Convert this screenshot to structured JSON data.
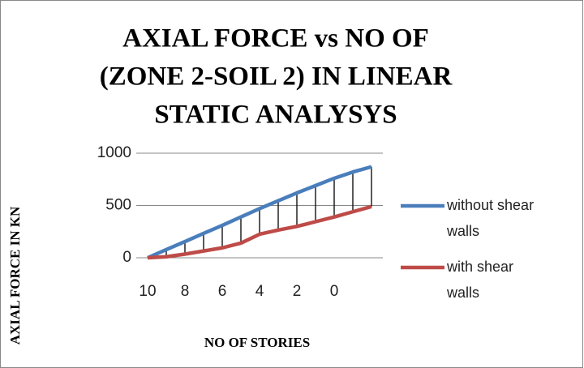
{
  "chart_data": {
    "type": "line",
    "title": [
      "AXIAL FORCE vs NO OF",
      "(ZONE 2-SOIL 2) IN LINEAR",
      "STATIC ANALYSYS"
    ],
    "x_label": "NO OF STORIES",
    "y_label": "AXIAL FORCE IN KN",
    "categories": [
      "10",
      null,
      "8",
      null,
      "6",
      null,
      "4",
      null,
      "2",
      null,
      "0",
      null,
      null
    ],
    "series": [
      {
        "name": "without shear walls",
        "color": "#4a7ebb",
        "values": [
          0,
          78,
          155,
          233,
          310,
          390,
          470,
          545,
          620,
          690,
          760,
          820,
          870
        ]
      },
      {
        "name": "with shear walls",
        "color": "#be4b48",
        "values": [
          0,
          10,
          35,
          65,
          95,
          140,
          225,
          265,
          300,
          345,
          390,
          440,
          490
        ]
      }
    ],
    "high_low_lines": true,
    "ylim": [
      0,
      1000
    ],
    "yticks": [
      0,
      500,
      1000
    ],
    "grid": true,
    "legend": "right"
  }
}
